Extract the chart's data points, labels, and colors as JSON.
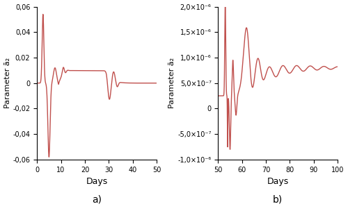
{
  "line_color": "#c0504d",
  "line_width": 1.0,
  "bg_color": "#ffffff",
  "panel_a": {
    "xlim": [
      0,
      50
    ],
    "ylim": [
      -0.06,
      0.06
    ],
    "xlabel": "Days",
    "ylabel": "Parameter ā₂",
    "label": "a)",
    "ytick_vals": [
      -0.06,
      -0.04,
      -0.02,
      0,
      0.02,
      0.04,
      0.06
    ],
    "ytick_labels": [
      "-0,06",
      "-0,04",
      "-0,02",
      "0",
      "0,02",
      "0,04",
      "0,06"
    ],
    "xticks": [
      0,
      10,
      20,
      30,
      40,
      50
    ]
  },
  "panel_b": {
    "xlim": [
      50,
      100
    ],
    "ylim": [
      -1e-06,
      2e-06
    ],
    "xlabel": "Days",
    "ylabel": "Parameter ā₂",
    "label": "b)",
    "ytick_vals": [
      -1e-06,
      -5e-07,
      0,
      5e-07,
      1e-06,
      1.5e-06,
      2e-06
    ],
    "ytick_labels": [
      "-1,0×10⁻⁶",
      "-5,0×10⁻⁷",
      "0",
      "5,0×10⁻⁷",
      "1,0×10⁻⁶",
      "1,5×10⁻⁶",
      "2,0×10⁻⁶"
    ],
    "xticks": [
      50,
      60,
      70,
      80,
      90,
      100
    ]
  }
}
